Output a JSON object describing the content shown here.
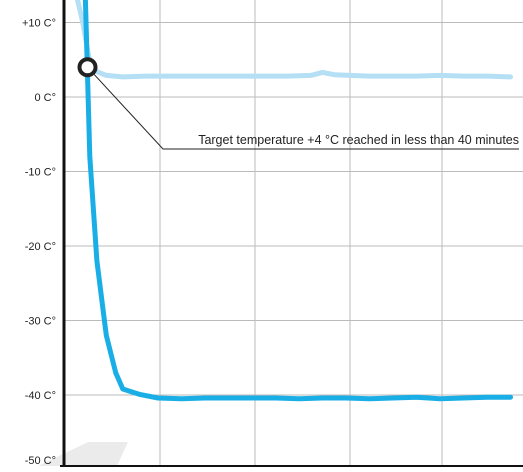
{
  "chart_data": {
    "type": "line",
    "title": "",
    "xlabel": "",
    "ylabel": "",
    "ylim": [
      -50,
      14
    ],
    "yticks": [
      {
        "value": 10,
        "label": "+10 C°"
      },
      {
        "value": 0,
        "label": "0 C°"
      },
      {
        "value": -10,
        "label": "-10 C°"
      },
      {
        "value": -20,
        "label": "-20 C°"
      },
      {
        "value": -30,
        "label": "-30 C°"
      },
      {
        "value": -40,
        "label": "-40 C°"
      },
      {
        "value": -50,
        "label": "-50 C°"
      }
    ],
    "grid": true,
    "legend": "none",
    "series": [
      {
        "color": "#b4dff4",
        "points": [
          [
            0.05,
            14
          ],
          [
            0.08,
            10
          ],
          [
            0.11,
            4.6
          ],
          [
            0.14,
            3.4
          ],
          [
            0.18,
            2.9
          ],
          [
            0.25,
            2.7
          ],
          [
            0.35,
            2.8
          ],
          [
            0.5,
            2.8
          ],
          [
            0.65,
            2.8
          ],
          [
            0.8,
            2.8
          ],
          [
            0.95,
            2.8
          ],
          [
            1.05,
            2.9
          ],
          [
            1.1,
            3.3
          ],
          [
            1.15,
            3.0
          ],
          [
            1.3,
            2.8
          ],
          [
            1.4,
            2.8
          ],
          [
            1.5,
            2.8
          ],
          [
            1.6,
            2.9
          ],
          [
            1.7,
            2.8
          ],
          [
            1.8,
            2.8
          ],
          [
            1.9,
            2.7
          ]
        ]
      },
      {
        "color": "#1aaee6",
        "points": [
          [
            0.09,
            14
          ],
          [
            0.11,
            -8
          ],
          [
            0.14,
            -22
          ],
          [
            0.18,
            -32
          ],
          [
            0.22,
            -37
          ],
          [
            0.25,
            -39.2
          ],
          [
            0.32,
            -39.9
          ],
          [
            0.4,
            -40.4
          ],
          [
            0.5,
            -40.5
          ],
          [
            0.6,
            -40.4
          ],
          [
            0.7,
            -40.4
          ],
          [
            0.8,
            -40.4
          ],
          [
            0.9,
            -40.4
          ],
          [
            1.0,
            -40.5
          ],
          [
            1.1,
            -40.4
          ],
          [
            1.2,
            -40.4
          ],
          [
            1.3,
            -40.5
          ],
          [
            1.4,
            -40.4
          ],
          [
            1.5,
            -40.3
          ],
          [
            1.6,
            -40.5
          ],
          [
            1.7,
            -40.4
          ],
          [
            1.8,
            -40.3
          ],
          [
            1.9,
            -40.3
          ]
        ]
      }
    ],
    "marker": {
      "x": 0.1,
      "y": 4
    },
    "annotation": {
      "text": "Target temperature +4 °C reached in less than 40 minutes",
      "target": {
        "x": 0.1,
        "y": 4
      }
    },
    "colors": {
      "axis": "#111111",
      "grid": "#bbbbbb",
      "marker_ring": "#222222",
      "leader_line": "#222222"
    }
  }
}
